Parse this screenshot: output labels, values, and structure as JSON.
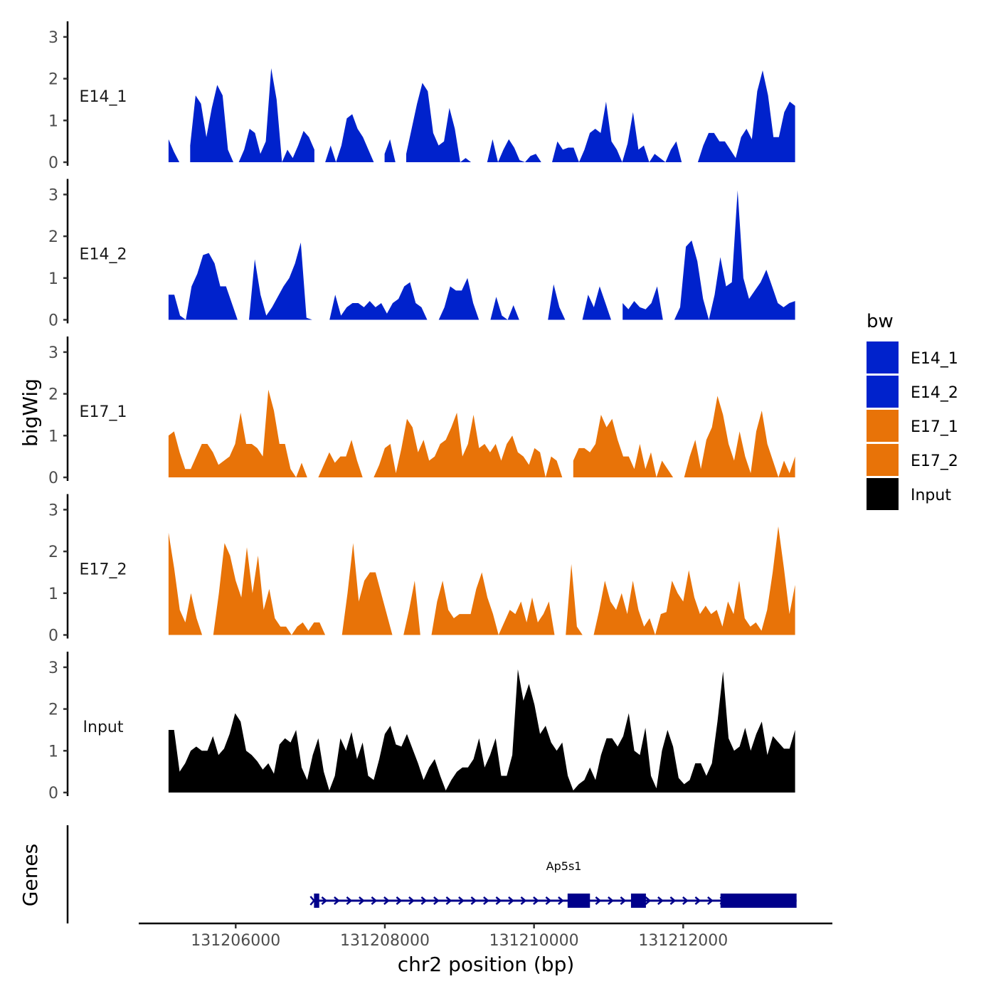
{
  "chart_data": {
    "type": "area",
    "chromosome": "chr2",
    "xlabel": "chr2 position (bp)",
    "ylabel": "bigWig",
    "genes_label": "Genes",
    "xlim": [
      131204700,
      131214000
    ],
    "x_ticks": [
      131206000,
      131208000,
      131210000,
      131212000
    ],
    "x_tick_labels": [
      "131206000",
      "131208000",
      "131210000",
      "131212000"
    ],
    "ylim": [
      0,
      3.3
    ],
    "y_ticks": [
      0,
      1,
      2,
      3
    ],
    "y_tick_labels": [
      "0",
      "1",
      "2",
      "3"
    ],
    "data_range": [
      131205100,
      131213500
    ],
    "legend": {
      "title": "bw",
      "position": "right",
      "entries": [
        {
          "label": "E14_1",
          "color": "#0022cc"
        },
        {
          "label": "E14_2",
          "color": "#0022cc"
        },
        {
          "label": "E17_1",
          "color": "#e87308"
        },
        {
          "label": "E17_2",
          "color": "#e87308"
        },
        {
          "label": "Input",
          "color": "#000000"
        }
      ]
    },
    "series": [
      {
        "name": "E14_1",
        "color": "#0022cc",
        "values": [
          0.55,
          0.25,
          0.0,
          null,
          0.4,
          1.6,
          1.4,
          0.6,
          1.3,
          1.85,
          1.6,
          0.3,
          0.0,
          0.0,
          0.3,
          0.8,
          0.7,
          0.2,
          0.5,
          2.25,
          1.5,
          0.0,
          0.3,
          0.1,
          0.4,
          0.75,
          0.6,
          0.3,
          null,
          0.0,
          0.4,
          0.0,
          0.4,
          1.05,
          1.15,
          0.8,
          0.6,
          0.3,
          0.0,
          null,
          0.2,
          0.55,
          0.0,
          null,
          0.2,
          0.8,
          1.4,
          1.9,
          1.7,
          0.7,
          0.4,
          0.5,
          1.3,
          0.8,
          0.0,
          0.1,
          0.0,
          null,
          null,
          0.0,
          0.55,
          0.0,
          0.3,
          0.55,
          0.35,
          0.05,
          0.0,
          0.15,
          0.2,
          0.0,
          null,
          0.0,
          0.5,
          0.3,
          0.35,
          0.35,
          0.0,
          0.3,
          0.7,
          0.8,
          0.7,
          1.45,
          0.5,
          0.3,
          0.0,
          0.45,
          1.2,
          0.3,
          0.4,
          0.0,
          0.2,
          0.1,
          0.0,
          0.3,
          0.5,
          0.0,
          null,
          null,
          0.0,
          0.4,
          0.7,
          0.7,
          0.5,
          0.5,
          0.3,
          0.1,
          0.6,
          0.8,
          0.55,
          1.7,
          2.2,
          1.6,
          0.6,
          0.6,
          1.2,
          1.45,
          1.35
        ]
      },
      {
        "name": "E14_2",
        "color": "#0022cc",
        "values": [
          0.6,
          0.6,
          0.1,
          0.0,
          0.8,
          1.1,
          1.55,
          1.6,
          1.35,
          0.8,
          0.8,
          0.4,
          0.0,
          null,
          0.0,
          1.45,
          0.6,
          0.1,
          0.3,
          0.55,
          0.8,
          1.0,
          1.35,
          1.85,
          0.05,
          0.0,
          null,
          null,
          0.0,
          0.6,
          0.1,
          0.3,
          0.4,
          0.4,
          0.3,
          0.45,
          0.3,
          0.4,
          0.15,
          0.4,
          0.5,
          0.8,
          0.9,
          0.4,
          0.3,
          0.0,
          null,
          0.0,
          0.3,
          0.8,
          0.7,
          0.7,
          1.0,
          0.4,
          0.0,
          null,
          0.0,
          0.55,
          0.1,
          0.0,
          0.35,
          0.0,
          null,
          null,
          null,
          null,
          0.0,
          0.85,
          0.3,
          0.0,
          null,
          null,
          0.0,
          0.6,
          0.3,
          0.8,
          0.4,
          0.0,
          null,
          0.4,
          0.25,
          0.45,
          0.3,
          0.25,
          0.4,
          0.8,
          0.0,
          null,
          0.0,
          0.3,
          1.75,
          1.9,
          1.4,
          0.5,
          0.0,
          0.6,
          1.5,
          0.8,
          0.9,
          3.1,
          1.0,
          0.5,
          0.7,
          0.9,
          1.2,
          0.8,
          0.4,
          0.3,
          0.4,
          0.45
        ]
      },
      {
        "name": "E17_1",
        "color": "#e87308",
        "values": [
          1.0,
          1.1,
          0.6,
          0.2,
          0.2,
          0.5,
          0.8,
          0.8,
          0.6,
          0.3,
          0.4,
          0.5,
          0.8,
          1.55,
          0.8,
          0.8,
          0.7,
          0.5,
          2.1,
          1.6,
          0.8,
          0.8,
          0.2,
          0.0,
          0.35,
          0.0,
          null,
          0.0,
          0.3,
          0.6,
          0.35,
          0.5,
          0.5,
          0.9,
          0.4,
          0.0,
          null,
          0.0,
          0.3,
          0.7,
          0.8,
          0.1,
          0.7,
          1.4,
          1.2,
          0.6,
          0.9,
          0.4,
          0.5,
          0.8,
          0.9,
          1.2,
          1.55,
          0.5,
          0.8,
          1.5,
          0.7,
          0.8,
          0.6,
          0.8,
          0.4,
          0.8,
          1.0,
          0.6,
          0.5,
          0.3,
          0.7,
          0.6,
          0.0,
          0.5,
          0.4,
          0.0,
          null,
          0.4,
          0.7,
          0.7,
          0.6,
          0.8,
          1.5,
          1.2,
          1.4,
          0.9,
          0.5,
          0.5,
          0.2,
          0.8,
          0.2,
          0.6,
          0.0,
          0.4,
          0.2,
          0.0,
          null,
          0.0,
          0.5,
          0.9,
          0.2,
          0.9,
          1.2,
          1.95,
          1.5,
          0.8,
          0.4,
          1.1,
          0.5,
          0.1,
          1.1,
          1.6,
          0.8,
          0.4,
          0.0,
          0.4,
          0.1,
          0.5
        ]
      },
      {
        "name": "E17_2",
        "color": "#e87308",
        "values": [
          2.45,
          1.6,
          0.6,
          0.3,
          1.0,
          0.4,
          0.0,
          null,
          0.0,
          1.0,
          2.2,
          1.9,
          1.3,
          0.9,
          2.1,
          1.0,
          1.9,
          0.6,
          1.1,
          0.4,
          0.2,
          0.2,
          0.0,
          0.2,
          0.3,
          0.1,
          0.3,
          0.3,
          0.0,
          null,
          null,
          0.0,
          1.0,
          2.2,
          0.8,
          1.3,
          1.5,
          1.5,
          1.0,
          0.5,
          0.0,
          null,
          0.0,
          0.6,
          1.3,
          0.0,
          null,
          0.0,
          0.8,
          1.3,
          0.6,
          0.4,
          0.5,
          0.5,
          0.5,
          1.1,
          1.5,
          0.9,
          0.5,
          0.0,
          0.3,
          0.6,
          0.5,
          0.8,
          0.3,
          0.9,
          0.3,
          0.5,
          0.8,
          0.0,
          null,
          0.0,
          1.7,
          0.2,
          0.0,
          null,
          0.0,
          0.6,
          1.3,
          0.8,
          0.6,
          1.0,
          0.5,
          1.3,
          0.6,
          0.2,
          0.4,
          0.0,
          0.5,
          0.55,
          1.3,
          1.0,
          0.8,
          1.55,
          0.9,
          0.5,
          0.7,
          0.5,
          0.6,
          0.2,
          0.8,
          0.5,
          1.3,
          0.4,
          0.2,
          0.3,
          0.1,
          0.6,
          1.5,
          2.6,
          1.6,
          0.5,
          1.2
        ]
      },
      {
        "name": "Input",
        "color": "#000000",
        "values": [
          1.5,
          1.5,
          0.5,
          0.7,
          1.0,
          1.1,
          1.0,
          1.0,
          1.35,
          0.9,
          1.05,
          1.4,
          1.9,
          1.7,
          1.0,
          0.9,
          0.75,
          0.55,
          0.7,
          0.45,
          1.15,
          1.3,
          1.2,
          1.5,
          0.6,
          0.3,
          0.9,
          1.3,
          0.5,
          0.05,
          0.4,
          1.3,
          1.0,
          1.45,
          0.8,
          1.2,
          0.4,
          0.3,
          0.8,
          1.4,
          1.6,
          1.15,
          1.1,
          1.4,
          1.05,
          0.7,
          0.3,
          0.6,
          0.8,
          0.4,
          0.05,
          0.3,
          0.5,
          0.6,
          0.6,
          0.8,
          1.3,
          0.6,
          0.9,
          1.3,
          0.4,
          0.4,
          0.9,
          2.95,
          2.2,
          2.6,
          2.1,
          1.4,
          1.6,
          1.2,
          1.0,
          1.2,
          0.4,
          0.05,
          0.2,
          0.3,
          0.6,
          0.3,
          0.9,
          1.3,
          1.3,
          1.1,
          1.35,
          1.9,
          1.0,
          0.9,
          1.55,
          0.4,
          0.1,
          1.0,
          1.5,
          1.1,
          0.35,
          0.2,
          0.3,
          0.7,
          0.7,
          0.4,
          0.7,
          1.7,
          2.9,
          1.3,
          1.0,
          1.1,
          1.55,
          1.0,
          1.4,
          1.7,
          0.9,
          1.35,
          1.2,
          1.05,
          1.05,
          1.5
        ]
      }
    ],
    "gene": {
      "name": "Ap5s1",
      "color": "#00008b",
      "start": 131207050,
      "end": 131213520,
      "strand": "+",
      "exons": [
        {
          "start": 131207050,
          "end": 131207120
        },
        {
          "start": 131210450,
          "end": 131210750
        },
        {
          "start": 131211300,
          "end": 131211500
        },
        {
          "start": 131212500,
          "end": 131213520
        }
      ]
    }
  }
}
